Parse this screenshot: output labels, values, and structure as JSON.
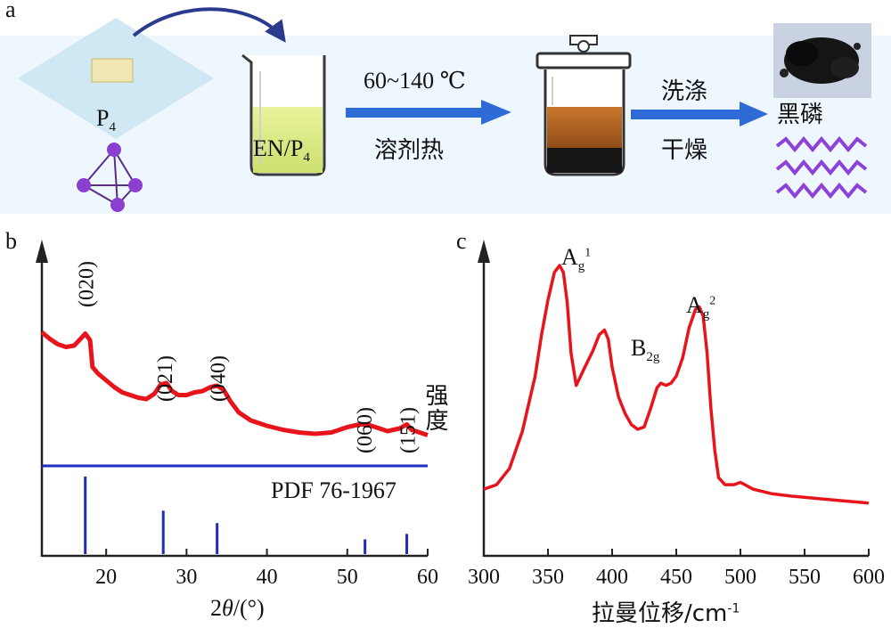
{
  "panel_a": {
    "letter": "a",
    "p4_label": "P",
    "p4_sub": "4",
    "beaker_label": "EN/P",
    "beaker_sub": "4",
    "step1_top": "60~140 ℃",
    "step1_bottom": "溶剂热",
    "step2_top": "洗涤",
    "step2_bottom": "干燥",
    "product_label": "黑磷"
  },
  "panel_b": {
    "letter": "b",
    "reference_label": "PDF 76-1967",
    "xlabel_theta": "θ",
    "xlabel_pre": "2",
    "xlabel_post": "/(°)",
    "peak_labels": [
      "(020)",
      "(021)",
      "(040)",
      "(060)",
      "(151)"
    ]
  },
  "panel_c": {
    "letter": "c",
    "xlabel": "拉曼位移/cm",
    "xlabel_sup": "-1",
    "ylabel": "强度",
    "peak_labels": [
      {
        "main": "A",
        "sub": "g",
        "sup": "1"
      },
      {
        "main": "B",
        "sub": "2g",
        "sup": ""
      },
      {
        "main": "A",
        "sub": "g",
        "sup": "2"
      }
    ]
  },
  "chart_data": [
    {
      "type": "line",
      "panel": "b",
      "xlabel": "2θ/(°)",
      "ylabel": "",
      "xlim": [
        12,
        60
      ],
      "xticks": [
        20,
        30,
        40,
        50,
        60
      ],
      "series": [
        {
          "x": [
            12,
            13,
            14,
            15,
            16,
            16.8,
            17.4,
            18,
            18.3,
            19,
            20,
            21,
            22,
            23,
            24,
            25,
            26,
            26.8,
            27.5,
            28.2,
            29,
            30,
            31,
            32,
            33,
            33.8,
            34.6,
            35.5,
            36.5,
            38,
            40,
            42,
            44,
            46,
            48,
            50,
            51.5,
            52.5,
            53.5,
            55,
            56.5,
            57.4,
            58,
            59,
            60
          ],
          "y": [
            0.88,
            0.83,
            0.79,
            0.77,
            0.78,
            0.83,
            0.87,
            0.82,
            0.62,
            0.57,
            0.52,
            0.47,
            0.43,
            0.41,
            0.39,
            0.38,
            0.42,
            0.49,
            0.5,
            0.44,
            0.41,
            0.41,
            0.43,
            0.44,
            0.47,
            0.48,
            0.45,
            0.36,
            0.28,
            0.22,
            0.18,
            0.15,
            0.13,
            0.12,
            0.13,
            0.17,
            0.19,
            0.19,
            0.17,
            0.14,
            0.16,
            0.19,
            0.15,
            0.13,
            0.11
          ]
        },
        {
          "name": "PDF 76-1967",
          "type": "stick",
          "x": [
            17.4,
            27.1,
            33.8,
            52.2,
            57.4
          ],
          "y": [
            1.0,
            0.56,
            0.4,
            0.19,
            0.26
          ]
        }
      ],
      "annotations": [
        {
          "text": "(020)",
          "x": 17.4
        },
        {
          "text": "(021)",
          "x": 27.2
        },
        {
          "text": "(040)",
          "x": 33.8
        },
        {
          "text": "(060)",
          "x": 52.0
        },
        {
          "text": "(151)",
          "x": 57.4
        }
      ]
    },
    {
      "type": "line",
      "panel": "c",
      "xlabel": "拉曼位移/cm-1",
      "ylabel": "强度",
      "xlim": [
        300,
        600
      ],
      "xticks": [
        300,
        350,
        400,
        450,
        500,
        550,
        600
      ],
      "series": [
        {
          "x": [
            300,
            310,
            320,
            330,
            340,
            345,
            350,
            355,
            359,
            362,
            365,
            368,
            372,
            378,
            385,
            390,
            394,
            397,
            400,
            405,
            410,
            415,
            420,
            425,
            430,
            435,
            438,
            442,
            446,
            450,
            455,
            460,
            465,
            468,
            471,
            474,
            477,
            480,
            483,
            488,
            495,
            500,
            510,
            525,
            540,
            560,
            580,
            600
          ],
          "y": [
            0.03,
            0.05,
            0.12,
            0.28,
            0.52,
            0.7,
            0.85,
            0.97,
            1.0,
            0.97,
            0.84,
            0.62,
            0.48,
            0.55,
            0.63,
            0.7,
            0.72,
            0.68,
            0.56,
            0.43,
            0.36,
            0.31,
            0.29,
            0.3,
            0.38,
            0.47,
            0.49,
            0.48,
            0.49,
            0.52,
            0.6,
            0.73,
            0.81,
            0.82,
            0.78,
            0.62,
            0.38,
            0.2,
            0.08,
            0.05,
            0.05,
            0.06,
            0.03,
            0.01,
            0.0,
            -0.01,
            -0.02,
            -0.03
          ]
        }
      ],
      "annotations": [
        {
          "text": "Ag1",
          "x": 360
        },
        {
          "text": "B2g",
          "x": 440
        },
        {
          "text": "Ag2",
          "x": 468
        }
      ]
    }
  ]
}
